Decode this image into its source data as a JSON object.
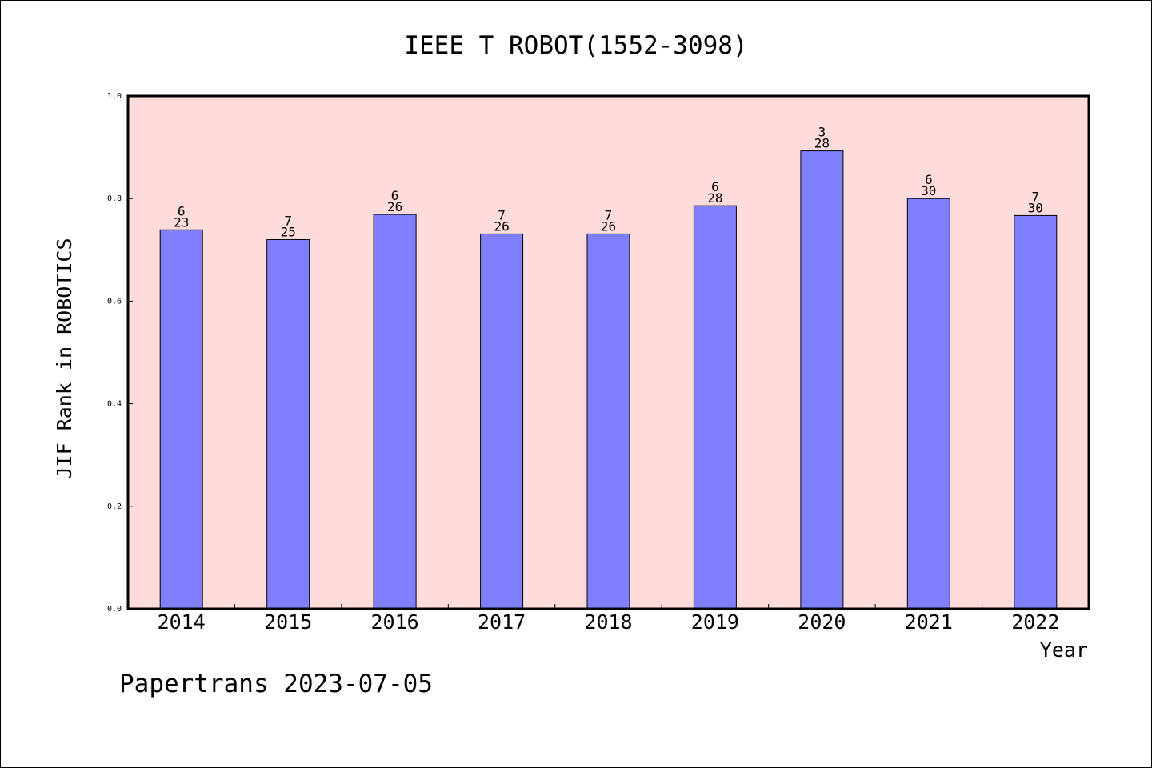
{
  "chart_data": {
    "type": "bar",
    "title": "IEEE T ROBOT(1552-3098)",
    "xlabel": "Year",
    "ylabel": "JIF Rank in ROBOTICS",
    "ylim": [
      0,
      1.0
    ],
    "yticks": [
      "0.0",
      "0.2",
      "0.4",
      "0.6",
      "0.8",
      "1.0"
    ],
    "categories": [
      "2014",
      "2015",
      "2016",
      "2017",
      "2018",
      "2019",
      "2020",
      "2021",
      "2022"
    ],
    "values": [
      0.739,
      0.72,
      0.769,
      0.731,
      0.731,
      0.786,
      0.893,
      0.8,
      0.767
    ],
    "rank": [
      "6",
      "7",
      "6",
      "7",
      "7",
      "6",
      "3",
      "6",
      "7"
    ],
    "total": [
      "23",
      "25",
      "26",
      "26",
      "26",
      "28",
      "28",
      "30",
      "30"
    ],
    "grid": false,
    "colors": {
      "bar": "#8080ff",
      "plot_background": "#ffdcdc",
      "axis": "#000000"
    }
  },
  "footer": "Papertrans 2023-07-05"
}
